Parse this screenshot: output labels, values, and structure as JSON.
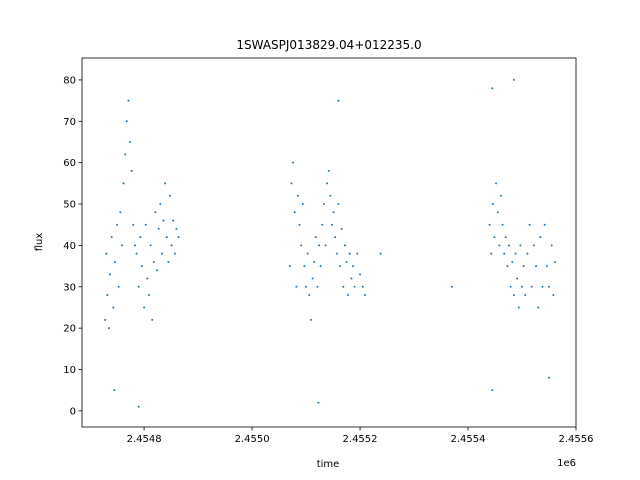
{
  "chart_data": {
    "type": "scatter",
    "title": "1SWASPJ013829.04+012235.0",
    "x_label": "time",
    "y_label": "flux",
    "x_offset_label": "1e6",
    "color": "#1f77b4",
    "xlim": [
      2454685,
      2455600
    ],
    "ylim": [
      -3.9,
      85.3
    ],
    "xticks": [
      {
        "value": 2454800,
        "label": "2.4548"
      },
      {
        "value": 2455000,
        "label": "2.4550"
      },
      {
        "value": 2455200,
        "label": "2.4552"
      },
      {
        "value": 2455400,
        "label": "2.4554"
      },
      {
        "value": 2455600,
        "label": "2.4556"
      }
    ],
    "yticks": [
      0,
      10,
      20,
      30,
      40,
      50,
      60,
      70,
      80
    ],
    "x": [
      2454728,
      2454730,
      2454732,
      2454735,
      2454737,
      2454740,
      2454743,
      2454746,
      2454750,
      2454753,
      2454756,
      2454759,
      2454762,
      2454765,
      2454768,
      2454771,
      2454774,
      2454777,
      2454780,
      2454783,
      2454786,
      2454790,
      2454793,
      2454796,
      2454800,
      2454803,
      2454806,
      2454809,
      2454812,
      2454815,
      2454818,
      2454821,
      2454824,
      2454827,
      2454830,
      2454833,
      2454836,
      2454839,
      2454842,
      2454845,
      2454848,
      2454851,
      2454854,
      2454857,
      2454860,
      2454864,
      2454745,
      2454790,
      2455070,
      2455073,
      2455076,
      2455079,
      2455082,
      2455085,
      2455088,
      2455091,
      2455094,
      2455097,
      2455100,
      2455103,
      2455106,
      2455109,
      2455112,
      2455115,
      2455118,
      2455121,
      2455124,
      2455127,
      2455130,
      2455133,
      2455136,
      2455139,
      2455142,
      2455145,
      2455148,
      2455151,
      2455154,
      2455157,
      2455160,
      2455163,
      2455166,
      2455169,
      2455172,
      2455175,
      2455178,
      2455181,
      2455184,
      2455187,
      2455190,
      2455195,
      2455200,
      2455205,
      2455209,
      2455123,
      2455160,
      2455238,
      2455370,
      2455440,
      2455443,
      2455446,
      2455449,
      2455452,
      2455455,
      2455458,
      2455461,
      2455464,
      2455467,
      2455470,
      2455473,
      2455476,
      2455479,
      2455482,
      2455485,
      2455488,
      2455491,
      2455494,
      2455497,
      2455500,
      2455503,
      2455506,
      2455510,
      2455514,
      2455518,
      2455522,
      2455526,
      2455530,
      2455534,
      2455538,
      2455542,
      2455546,
      2455550,
      2455555,
      2455558,
      2455561,
      2455445,
      2455445,
      2455485,
      2455550
    ],
    "values": [
      22,
      38,
      28,
      20,
      33,
      42,
      25,
      36,
      45,
      30,
      48,
      40,
      55,
      62,
      70,
      75,
      65,
      58,
      45,
      40,
      38,
      30,
      42,
      35,
      25,
      45,
      32,
      28,
      40,
      22,
      36,
      48,
      34,
      44,
      50,
      38,
      46,
      55,
      42,
      36,
      52,
      40,
      46,
      38,
      44,
      42,
      5,
      1,
      35,
      55,
      60,
      48,
      30,
      52,
      45,
      40,
      50,
      35,
      30,
      38,
      28,
      22,
      32,
      36,
      42,
      30,
      40,
      35,
      45,
      50,
      40,
      55,
      58,
      52,
      45,
      48,
      42,
      38,
      50,
      35,
      44,
      30,
      40,
      36,
      28,
      38,
      32,
      35,
      30,
      38,
      33,
      30,
      28,
      2,
      75,
      38,
      30,
      45,
      38,
      50,
      42,
      55,
      48,
      40,
      52,
      45,
      38,
      42,
      35,
      40,
      30,
      36,
      28,
      38,
      32,
      25,
      40,
      30,
      35,
      28,
      38,
      45,
      30,
      40,
      35,
      25,
      42,
      30,
      45,
      35,
      30,
      40,
      28,
      36,
      5,
      78,
      80,
      8
    ]
  }
}
